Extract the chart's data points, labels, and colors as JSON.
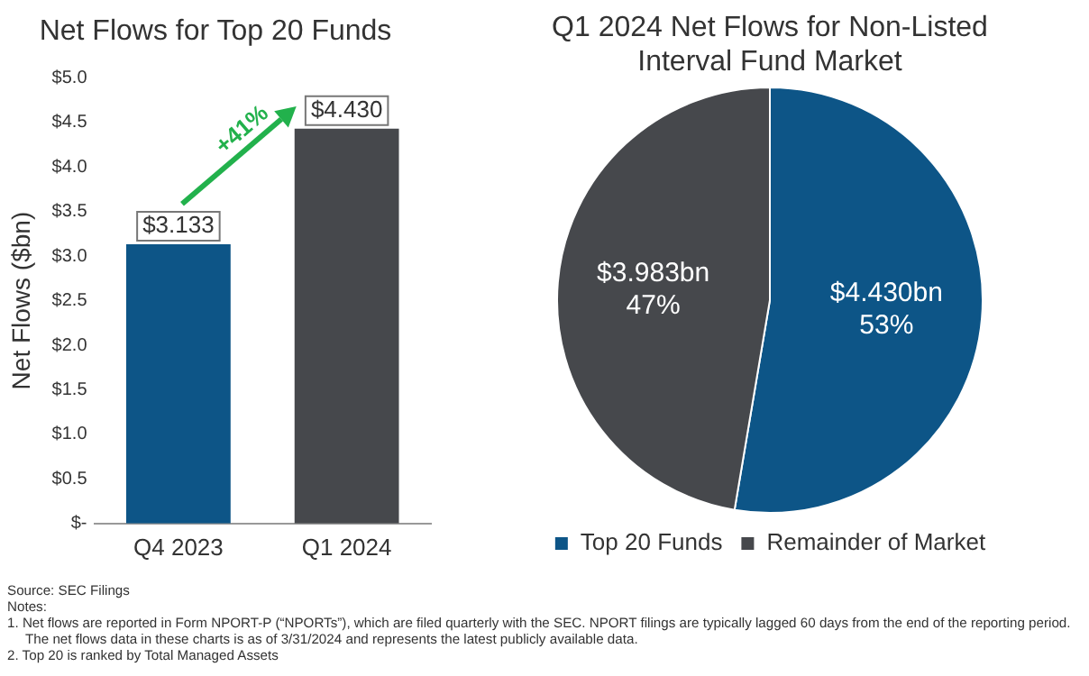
{
  "chart_data": [
    {
      "type": "bar",
      "title": "Net Flows for Top 20 Funds",
      "ylabel": "Net Flows ($bn)",
      "categories": [
        "Q4 2023",
        "Q1 2024"
      ],
      "values": [
        3.133,
        4.43
      ],
      "colors": [
        "#0d5587",
        "#46484c"
      ],
      "value_labels": [
        "$3.133",
        "$4.430"
      ],
      "ylim": [
        0,
        5
      ],
      "yticks": [
        {
          "value": 0,
          "label": "$-"
        },
        {
          "value": 0.5,
          "label": "$0.5"
        },
        {
          "value": 1,
          "label": "$1.0"
        },
        {
          "value": 1.5,
          "label": "$1.5"
        },
        {
          "value": 2,
          "label": "$2.0"
        },
        {
          "value": 2.5,
          "label": "$2.5"
        },
        {
          "value": 3,
          "label": "$3.0"
        },
        {
          "value": 3.5,
          "label": "$3.5"
        },
        {
          "value": 4,
          "label": "$4.0"
        },
        {
          "value": 4.5,
          "label": "$4.5"
        },
        {
          "value": 5,
          "label": "$5.0"
        }
      ],
      "grid": false,
      "legend": false,
      "annotations": [
        "+41%",
        "Source: SEC Filings",
        "Notes:",
        "1.  Net flows are reported in Form NPORT-P (“NPORTs”), which are filed quarterly with the SEC. NPORT filings are typically lagged 60 days from the end of the reporting period. The net flows data in these charts is as of 3/31/2024 and represents the latest publicly available data.",
        "2.  Top 20 is ranked by Total Managed Assets"
      ]
    },
    {
      "type": "pie",
      "title": "Q1 2024 Net Flows for Non-Listed Interval Fund Market",
      "categories": [
        "Top 20 Funds",
        "Remainder of Market"
      ],
      "values": [
        4.43,
        3.983
      ],
      "colors": [
        "#0d5587",
        "#46484c"
      ],
      "value_labels": [
        "$4.430bn",
        "$3.983bn"
      ],
      "annotations": [
        "53%",
        "47%"
      ],
      "legend": "bottom"
    }
  ]
}
